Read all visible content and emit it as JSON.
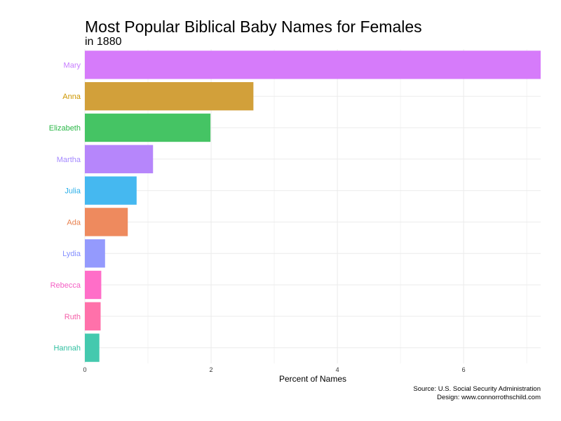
{
  "chart_data": {
    "type": "bar",
    "orientation": "horizontal",
    "title": "Most Popular Biblical Baby Names for Females",
    "subtitle": "in 1880",
    "xlabel": "Percent of Names",
    "ylabel": "",
    "xlim": [
      0,
      7.22
    ],
    "xticks": [
      0,
      2,
      4,
      6
    ],
    "grid": true,
    "legend": "none",
    "categories": [
      "Mary",
      "Anna",
      "Elizabeth",
      "Martha",
      "Julia",
      "Ada",
      "Lydia",
      "Rebecca",
      "Ruth",
      "Hannah"
    ],
    "values": [
      7.22,
      2.67,
      1.99,
      1.08,
      0.82,
      0.68,
      0.32,
      0.26,
      0.25,
      0.23
    ],
    "colors": [
      "#D67BFA",
      "#D2A03A",
      "#45C464",
      "#B686FB",
      "#45B8F0",
      "#EE8A5E",
      "#949AFD",
      "#FF6EC8",
      "#FF71AA",
      "#44C9AE"
    ],
    "label_colors": [
      "#C77CFF",
      "#CD9600",
      "#2CB849",
      "#A58AFF",
      "#2BAFE9",
      "#E8804E",
      "#8590FF",
      "#F45FC4",
      "#F45FA8",
      "#2FBFA0"
    ]
  },
  "caption": {
    "line1": "Source: U.S. Social Security Administration",
    "line2": "Design: www.connorrothschild.com"
  }
}
